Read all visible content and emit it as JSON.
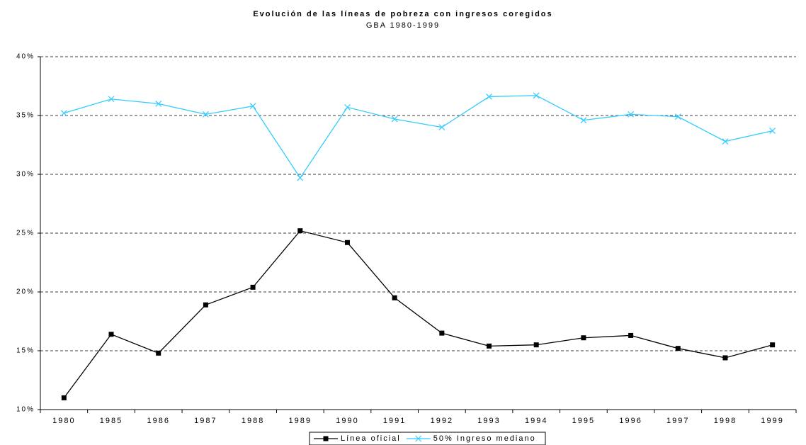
{
  "chart_data": {
    "type": "line",
    "title": "Evolución de las líneas de pobreza con ingresos coregidos",
    "subtitle": "GBA 1980-1999",
    "categories": [
      "1980",
      "1985",
      "1986",
      "1987",
      "1988",
      "1989",
      "1990",
      "1991",
      "1992",
      "1993",
      "1994",
      "1995",
      "1996",
      "1997",
      "1998",
      "1999"
    ],
    "series": [
      {
        "name": "Línea oficial",
        "color": "#000000",
        "marker": "square",
        "values": [
          11.0,
          16.4,
          14.8,
          18.9,
          20.4,
          25.2,
          24.2,
          19.5,
          16.5,
          15.4,
          15.5,
          16.1,
          16.3,
          15.2,
          14.4,
          15.5
        ]
      },
      {
        "name": "50% Ingreso mediano",
        "color": "#33ccff",
        "marker": "x",
        "values": [
          35.2,
          36.4,
          36.0,
          35.1,
          35.8,
          29.7,
          35.7,
          34.7,
          34.0,
          36.6,
          36.7,
          34.6,
          35.1,
          34.9,
          32.8,
          33.7
        ]
      }
    ],
    "ylim": [
      10,
      40
    ],
    "yticks": [
      {
        "value": 10,
        "label": "10%"
      },
      {
        "value": 15,
        "label": "15%"
      },
      {
        "value": 20,
        "label": "20%"
      },
      {
        "value": 25,
        "label": "25%"
      },
      {
        "value": 30,
        "label": "30%"
      },
      {
        "value": 35,
        "label": "35%"
      },
      {
        "value": 40,
        "label": "40%"
      }
    ],
    "grid": true,
    "legend": "bottom"
  }
}
